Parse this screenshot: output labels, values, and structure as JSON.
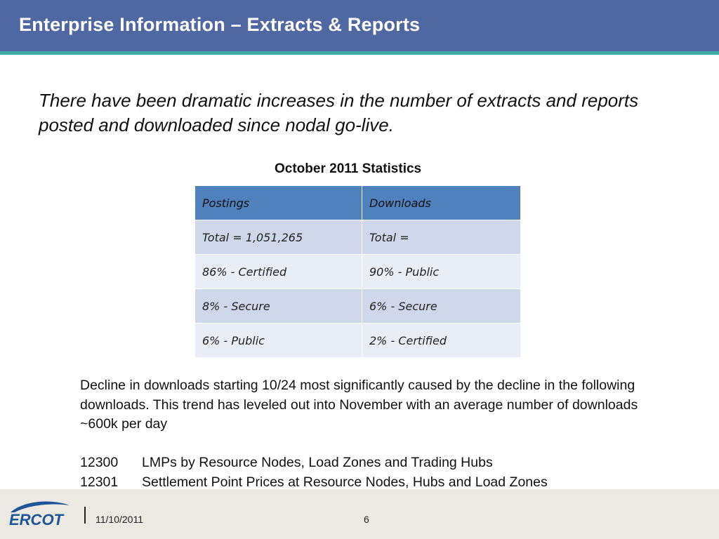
{
  "header": {
    "title": "Enterprise Information – Extracts & Reports"
  },
  "intro_text": "There have been dramatic increases in the number of extracts and reports posted and downloaded since nodal go-live.",
  "stats": {
    "heading": "October 2011 Statistics",
    "columns": [
      "Postings",
      "Downloads"
    ],
    "rows": [
      [
        "Total = 1,051,265",
        "Total ="
      ],
      [
        "86% - Certified",
        "90% - Public"
      ],
      [
        "8% - Secure",
        "6% - Secure"
      ],
      [
        "6% - Public",
        "2% - Certified"
      ]
    ]
  },
  "decline_text": "Decline in downloads starting 10/24 most significantly caused by the decline in the following downloads. This trend has leveled out into November with an average number of downloads ~600k per day",
  "downloads_list": [
    {
      "id": "12300",
      "name": "LMPs by Resource Nodes, Load Zones and Trading Hubs"
    },
    {
      "id": "12301",
      "name": "Settlement Point Prices at Resource Nodes, Hubs and Load Zones"
    }
  ],
  "footer": {
    "logo_text": "ERCOT",
    "date": "11/10/2011",
    "page_number": "6"
  },
  "colors": {
    "title_bar": "#5068a2",
    "title_rule": "#3fa9a4",
    "table_header": "#4f81bd",
    "table_row_odd": "#cfd8ea",
    "table_row_even": "#e9edf5",
    "footer_band": "#ebe9e2",
    "logo_blue": "#1d5599"
  }
}
